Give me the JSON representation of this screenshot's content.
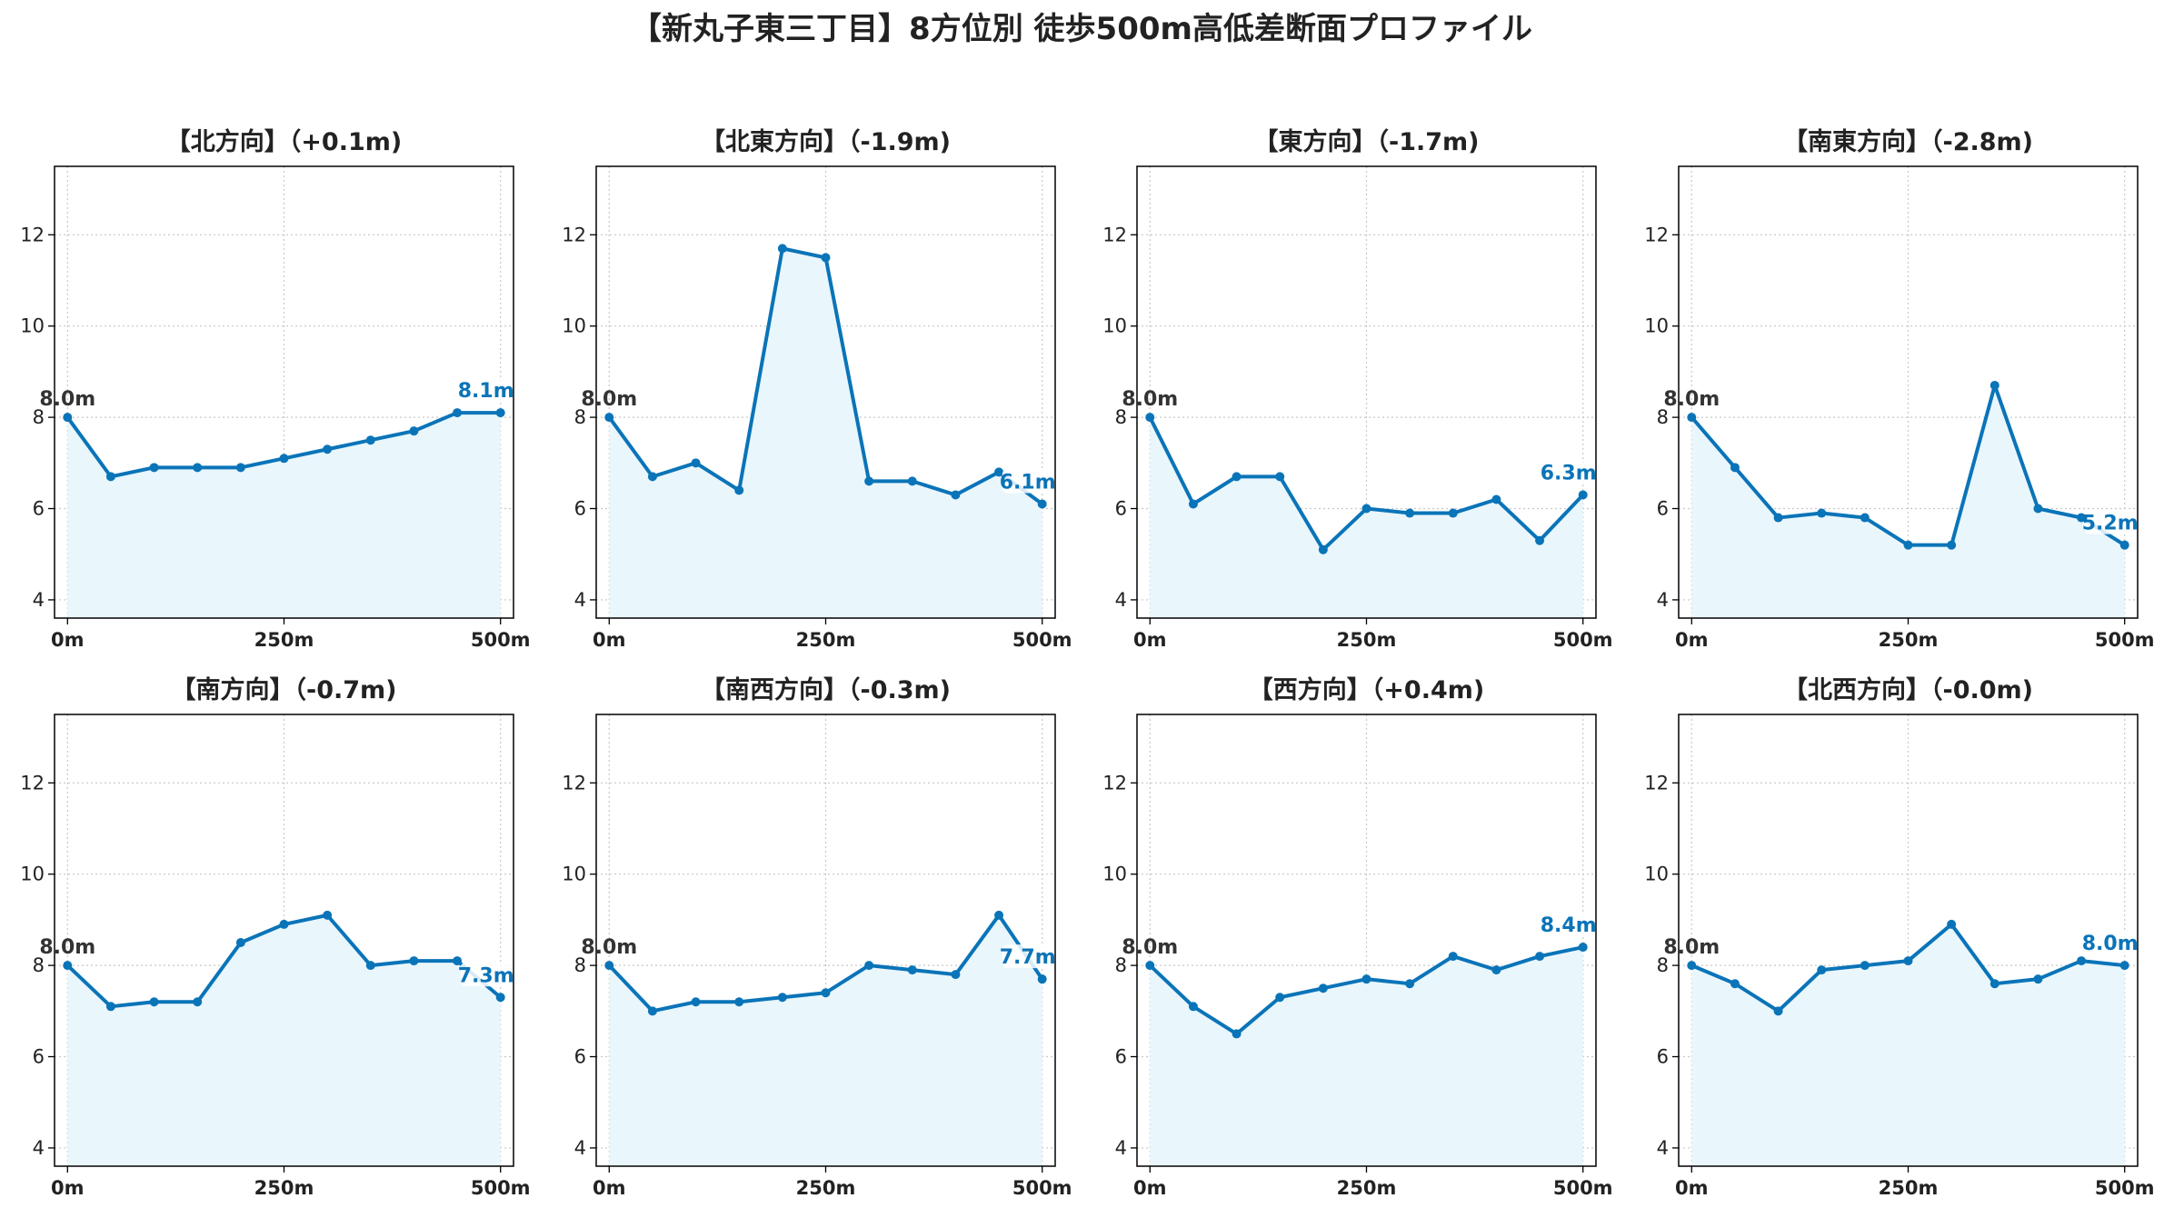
{
  "title": "【新丸子東三丁目】8方位別 徒歩500m高低差断面プロファイル",
  "colors": {
    "line": "#0a74b8",
    "fill": "#e9f6fc",
    "grid": "#c8c8c8",
    "axis": "#000000"
  },
  "chart_data": [
    {
      "type": "line",
      "title": "【北方向】（+0.1m)",
      "x": [
        0,
        50,
        100,
        150,
        200,
        250,
        300,
        350,
        400,
        450,
        500
      ],
      "values": [
        8.0,
        6.7,
        6.9,
        6.9,
        6.9,
        7.1,
        7.3,
        7.5,
        7.7,
        8.1,
        8.1
      ],
      "xticks": [
        "0m",
        "250m",
        "500m"
      ],
      "yticks": [
        "4",
        "6",
        "8",
        "10",
        "12"
      ],
      "ylim": [
        3.6,
        13.5
      ],
      "xlim": [
        -15,
        515
      ],
      "grid": true,
      "start_label": "8.0m",
      "end_label": "8.1m"
    },
    {
      "type": "line",
      "title": "【北東方向】（-1.9m)",
      "x": [
        0,
        50,
        100,
        150,
        200,
        250,
        300,
        350,
        400,
        450,
        500
      ],
      "values": [
        8.0,
        6.7,
        7.0,
        6.4,
        11.7,
        11.5,
        6.6,
        6.6,
        6.3,
        6.8,
        6.1
      ],
      "xticks": [
        "0m",
        "250m",
        "500m"
      ],
      "yticks": [
        "4",
        "6",
        "8",
        "10",
        "12"
      ],
      "ylim": [
        3.6,
        13.5
      ],
      "xlim": [
        -15,
        515
      ],
      "grid": true,
      "start_label": "8.0m",
      "end_label": "6.1m"
    },
    {
      "type": "line",
      "title": "【東方向】（-1.7m)",
      "x": [
        0,
        50,
        100,
        150,
        200,
        250,
        300,
        350,
        400,
        450,
        500
      ],
      "values": [
        8.0,
        6.1,
        6.7,
        6.7,
        5.1,
        6.0,
        5.9,
        5.9,
        6.2,
        5.3,
        6.3
      ],
      "xticks": [
        "0m",
        "250m",
        "500m"
      ],
      "yticks": [
        "4",
        "6",
        "8",
        "10",
        "12"
      ],
      "ylim": [
        3.6,
        13.5
      ],
      "xlim": [
        -15,
        515
      ],
      "grid": true,
      "start_label": "8.0m",
      "end_label": "6.3m"
    },
    {
      "type": "line",
      "title": "【南東方向】（-2.8m)",
      "x": [
        0,
        50,
        100,
        150,
        200,
        250,
        300,
        350,
        400,
        450,
        500
      ],
      "values": [
        8.0,
        6.9,
        5.8,
        5.9,
        5.8,
        5.2,
        5.2,
        8.7,
        6.0,
        5.8,
        5.2
      ],
      "xticks": [
        "0m",
        "250m",
        "500m"
      ],
      "yticks": [
        "4",
        "6",
        "8",
        "10",
        "12"
      ],
      "ylim": [
        3.6,
        13.5
      ],
      "xlim": [
        -15,
        515
      ],
      "grid": true,
      "start_label": "8.0m",
      "end_label": "5.2m"
    },
    {
      "type": "line",
      "title": "【南方向】（-0.7m)",
      "x": [
        0,
        50,
        100,
        150,
        200,
        250,
        300,
        350,
        400,
        450,
        500
      ],
      "values": [
        8.0,
        7.1,
        7.2,
        7.2,
        8.5,
        8.9,
        9.1,
        8.0,
        8.1,
        8.1,
        7.3
      ],
      "xticks": [
        "0m",
        "250m",
        "500m"
      ],
      "yticks": [
        "4",
        "6",
        "8",
        "10",
        "12"
      ],
      "ylim": [
        3.6,
        13.5
      ],
      "xlim": [
        -15,
        515
      ],
      "grid": true,
      "start_label": "8.0m",
      "end_label": "7.3m"
    },
    {
      "type": "line",
      "title": "【南西方向】（-0.3m)",
      "x": [
        0,
        50,
        100,
        150,
        200,
        250,
        300,
        350,
        400,
        450,
        500
      ],
      "values": [
        8.0,
        7.0,
        7.2,
        7.2,
        7.3,
        7.4,
        8.0,
        7.9,
        7.8,
        9.1,
        7.7
      ],
      "xticks": [
        "0m",
        "250m",
        "500m"
      ],
      "yticks": [
        "4",
        "6",
        "8",
        "10",
        "12"
      ],
      "ylim": [
        3.6,
        13.5
      ],
      "xlim": [
        -15,
        515
      ],
      "grid": true,
      "start_label": "8.0m",
      "end_label": "7.7m"
    },
    {
      "type": "line",
      "title": "【西方向】（+0.4m)",
      "x": [
        0,
        50,
        100,
        150,
        200,
        250,
        300,
        350,
        400,
        450,
        500
      ],
      "values": [
        8.0,
        7.1,
        6.5,
        7.3,
        7.5,
        7.7,
        7.6,
        8.2,
        7.9,
        8.2,
        8.4
      ],
      "xticks": [
        "0m",
        "250m",
        "500m"
      ],
      "yticks": [
        "4",
        "6",
        "8",
        "10",
        "12"
      ],
      "ylim": [
        3.6,
        13.5
      ],
      "xlim": [
        -15,
        515
      ],
      "grid": true,
      "start_label": "8.0m",
      "end_label": "8.4m"
    },
    {
      "type": "line",
      "title": "【北西方向】（-0.0m)",
      "x": [
        0,
        50,
        100,
        150,
        200,
        250,
        300,
        350,
        400,
        450,
        500
      ],
      "values": [
        8.0,
        7.6,
        7.0,
        7.9,
        8.0,
        8.1,
        8.9,
        7.6,
        7.7,
        8.1,
        8.0
      ],
      "xticks": [
        "0m",
        "250m",
        "500m"
      ],
      "yticks": [
        "4",
        "6",
        "8",
        "10",
        "12"
      ],
      "ylim": [
        3.6,
        13.5
      ],
      "xlim": [
        -15,
        515
      ],
      "grid": true,
      "start_label": "8.0m",
      "end_label": "8.0m"
    }
  ]
}
